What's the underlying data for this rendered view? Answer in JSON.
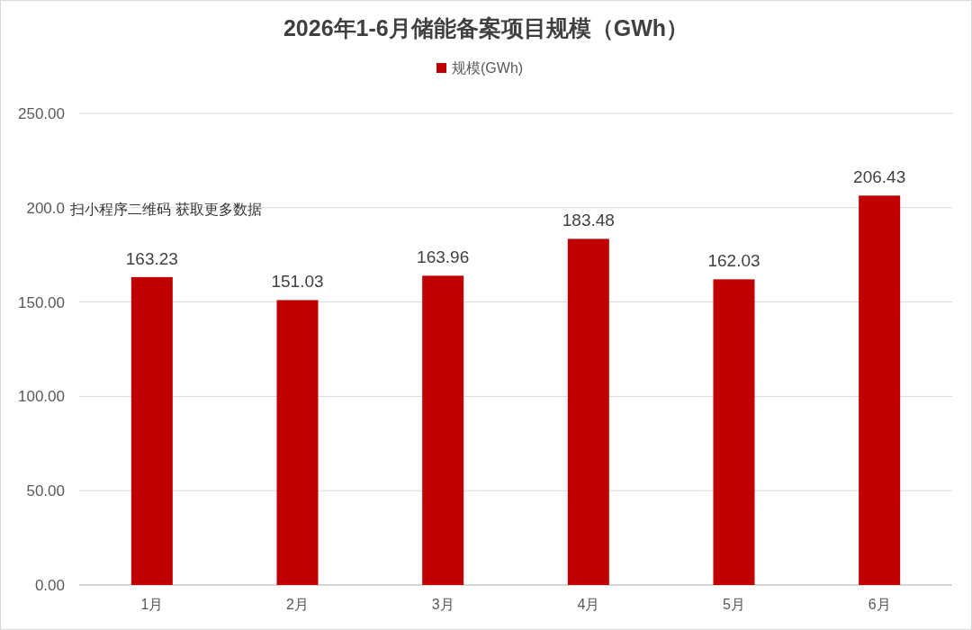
{
  "chart_data": {
    "type": "bar",
    "title": "2026年1-6月储能备案项目规模（GWh）",
    "categories": [
      "1月",
      "2月",
      "3月",
      "4月",
      "5月",
      "6月"
    ],
    "series": [
      {
        "name": "规模(GWh)",
        "color": "#c00000",
        "values": [
          163.23,
          151.03,
          163.96,
          183.48,
          162.03,
          206.43
        ]
      }
    ],
    "ylim": [
      0,
      250
    ],
    "yticks": [
      {
        "value": 0,
        "label": "0.00"
      },
      {
        "value": 50,
        "label": "50.00"
      },
      {
        "value": 100,
        "label": "100.00"
      },
      {
        "value": 150,
        "label": "150.00"
      },
      {
        "value": 200,
        "label": "200.0"
      },
      {
        "value": 250,
        "label": "250.00"
      }
    ],
    "grid": "y",
    "legend": "top",
    "data_labels": true,
    "annotations": [
      "扫小程序二维码 获取更多数据"
    ]
  }
}
